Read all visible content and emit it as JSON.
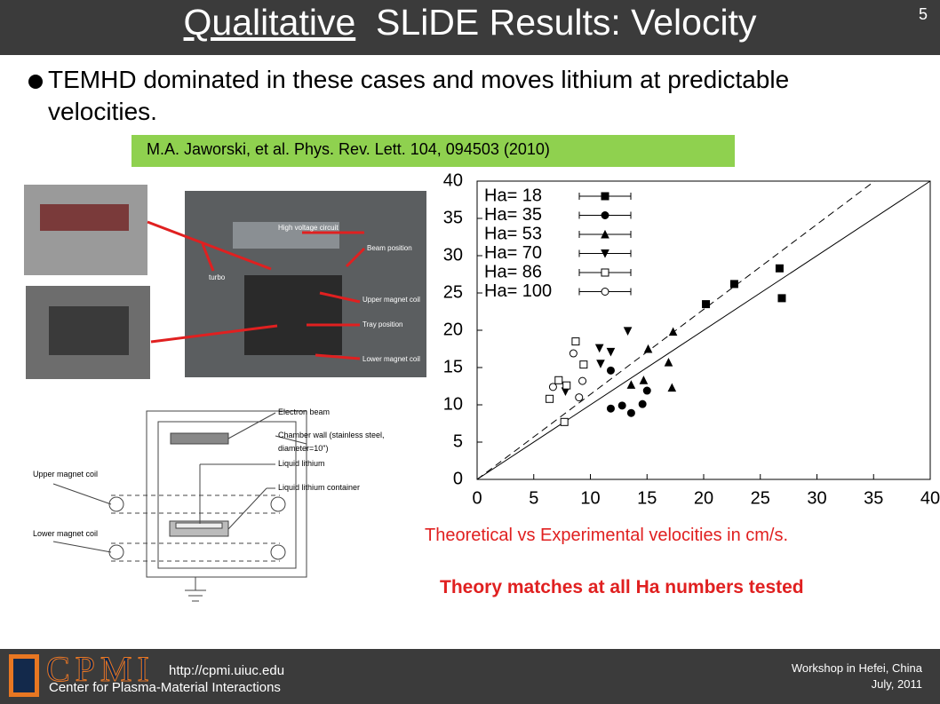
{
  "header": {
    "title_underlined": "Qualitative",
    "title_rest": "SLiDE Results:  Velocity",
    "slide_number": "5"
  },
  "bullet": "TEMHD dominated in these cases and moves lithium at predictable velocities.",
  "citation": "M.A. Jaworski, et al. Phys. Rev. Lett. 104, 094503 (2010)",
  "photo_labels": [
    "High voltage circuit",
    "Beam position",
    "turbo",
    "Upper magnet coil",
    "Tray position",
    "Lower magnet coil"
  ],
  "schematic_labels": [
    "Electron beam",
    "Chamber wall (stainless steel,",
    "diameter=10\")",
    "Liquid lithium",
    "Liquid lithium container",
    "Upper magnet coil",
    "Lower magnet coil"
  ],
  "chart_data": {
    "type": "scatter",
    "xlim": [
      0,
      40
    ],
    "ylim": [
      0,
      40
    ],
    "xticks": [
      0,
      5,
      10,
      15,
      20,
      25,
      30,
      35,
      40
    ],
    "yticks": [
      0,
      5,
      10,
      15,
      20,
      25,
      30,
      35,
      40
    ],
    "reference_lines": [
      {
        "slope": 1,
        "dashed": false
      },
      {
        "slope": 1.14,
        "dashed": true
      }
    ],
    "series": [
      {
        "name": "Ha= 18",
        "marker": "square",
        "filled": true,
        "x": [
          26.7,
          22.7,
          20.2,
          26.9
        ],
        "values": [
          28.3,
          26.2,
          23.5,
          24.3
        ]
      },
      {
        "name": "Ha= 35",
        "marker": "circle",
        "filled": true,
        "x": [
          11.8,
          11.8,
          12.8,
          13.6,
          14.6,
          15.0
        ],
        "values": [
          14.6,
          9.5,
          9.9,
          8.9,
          10.1,
          11.9
        ]
      },
      {
        "name": "Ha= 53",
        "marker": "triangle-up",
        "filled": true,
        "x": [
          17.3,
          15.1,
          16.9,
          13.6,
          14.7,
          17.2
        ],
        "values": [
          19.8,
          17.5,
          15.7,
          12.7,
          13.3,
          12.3
        ]
      },
      {
        "name": "Ha= 70",
        "marker": "triangle-down",
        "filled": true,
        "x": [
          10.8,
          11.8,
          13.3,
          10.9,
          7.8
        ],
        "values": [
          17.6,
          17.1,
          19.9,
          15.5,
          11.8
        ]
      },
      {
        "name": "Ha= 86",
        "marker": "square",
        "filled": false,
        "x": [
          6.4,
          8.7,
          7.2,
          7.9,
          7.7,
          9.4
        ],
        "values": [
          10.8,
          18.5,
          13.3,
          12.6,
          7.7,
          15.4
        ]
      },
      {
        "name": "Ha= 100",
        "marker": "circle",
        "filled": false,
        "x": [
          8.5,
          6.7,
          9.0,
          9.3
        ],
        "values": [
          16.9,
          12.4,
          11.0,
          13.2
        ]
      }
    ]
  },
  "caption": "Theoretical vs Experimental velocities in cm/s.",
  "conclusion": "Theory matches at all Ha numbers tested",
  "footer": {
    "logo": "CPMI",
    "url": "http://cpmi.uiuc.edu",
    "org": "Center for Plasma-Material Interactions",
    "event": "Workshop in Hefei, China",
    "date": "July, 2011"
  }
}
